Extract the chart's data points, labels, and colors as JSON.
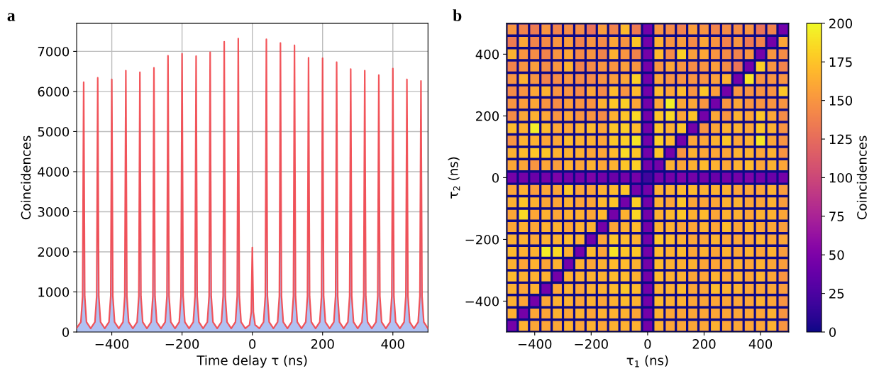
{
  "chart_data": [
    {
      "type": "line",
      "title": "a",
      "xlabel": "Time delay τ (ns)",
      "ylabel": "Coincidences",
      "x": [
        -500,
        -488,
        -483,
        -480,
        -477,
        -472,
        -460,
        -448,
        -443,
        -440,
        -437,
        -432,
        -420,
        -408,
        -403,
        -400,
        -397,
        -392,
        -380,
        -368,
        -363,
        -360,
        -357,
        -352,
        -340,
        -328,
        -323,
        -320,
        -317,
        -312,
        -300,
        -288,
        -283,
        -280,
        -277,
        -272,
        -260,
        -248,
        -243,
        -240,
        -237,
        -232,
        -220,
        -208,
        -203,
        -200,
        -197,
        -192,
        -180,
        -168,
        -163,
        -160,
        -157,
        -152,
        -140,
        -128,
        -123,
        -120,
        -117,
        -112,
        -100,
        -88,
        -83,
        -80,
        -77,
        -72,
        -60,
        -48,
        -43,
        -40,
        -37,
        -32,
        -20,
        -8,
        -3,
        0,
        3,
        8,
        20,
        32,
        37,
        40,
        43,
        48,
        60,
        72,
        77,
        80,
        83,
        88,
        100,
        112,
        117,
        120,
        123,
        128,
        140,
        152,
        157,
        160,
        163,
        168,
        180,
        192,
        197,
        200,
        203,
        208,
        220,
        232,
        237,
        240,
        243,
        248,
        260,
        272,
        277,
        280,
        283,
        288,
        300,
        312,
        317,
        320,
        323,
        328,
        340,
        352,
        357,
        360,
        363,
        368,
        380,
        392,
        397,
        400,
        403,
        408,
        420,
        432,
        437,
        440,
        443,
        448,
        460,
        472,
        477,
        480,
        483,
        488,
        500
      ],
      "series": [
        {
          "type": "area",
          "color": "#b0c1f2",
          "values": [
            100,
            250,
            900,
            6230,
            900,
            250,
            90,
            250,
            900,
            6340,
            900,
            250,
            90,
            250,
            900,
            6300,
            900,
            250,
            90,
            250,
            900,
            6520,
            900,
            250,
            90,
            250,
            900,
            6480,
            900,
            250,
            90,
            250,
            900,
            6590,
            900,
            250,
            90,
            250,
            900,
            6890,
            900,
            250,
            90,
            250,
            900,
            6940,
            900,
            250,
            90,
            250,
            900,
            6880,
            900,
            250,
            90,
            250,
            900,
            6980,
            900,
            250,
            90,
            250,
            900,
            7240,
            900,
            250,
            90,
            250,
            900,
            7320,
            900,
            250,
            90,
            180,
            500,
            2110,
            500,
            180,
            90,
            250,
            900,
            7300,
            900,
            250,
            90,
            250,
            900,
            7210,
            900,
            250,
            90,
            250,
            900,
            7150,
            900,
            250,
            90,
            250,
            900,
            6840,
            900,
            250,
            90,
            250,
            900,
            6830,
            900,
            250,
            90,
            250,
            900,
            6730,
            900,
            250,
            90,
            250,
            900,
            6560,
            900,
            250,
            90,
            250,
            900,
            6520,
            900,
            250,
            90,
            250,
            900,
            6410,
            900,
            250,
            90,
            250,
            900,
            6570,
            900,
            250,
            90,
            250,
            900,
            6300,
            900,
            250,
            90,
            250,
            900,
            6260,
            900,
            250,
            90
          ]
        },
        {
          "type": "line",
          "color": "#f24449",
          "values": [
            100,
            250,
            900,
            6230,
            900,
            250,
            90,
            250,
            900,
            6340,
            900,
            250,
            90,
            250,
            900,
            6300,
            900,
            250,
            90,
            250,
            900,
            6520,
            900,
            250,
            90,
            250,
            900,
            6480,
            900,
            250,
            90,
            250,
            900,
            6590,
            900,
            250,
            90,
            250,
            900,
            6890,
            900,
            250,
            90,
            250,
            900,
            6940,
            900,
            250,
            90,
            250,
            900,
            6880,
            900,
            250,
            90,
            250,
            900,
            6980,
            900,
            250,
            90,
            250,
            900,
            7240,
            900,
            250,
            90,
            250,
            900,
            7320,
            900,
            250,
            90,
            180,
            500,
            2110,
            500,
            180,
            90,
            250,
            900,
            7300,
            900,
            250,
            90,
            250,
            900,
            7210,
            900,
            250,
            90,
            250,
            900,
            7150,
            900,
            250,
            90,
            250,
            900,
            6840,
            900,
            250,
            90,
            250,
            900,
            6830,
            900,
            250,
            90,
            250,
            900,
            6730,
            900,
            250,
            90,
            250,
            900,
            6560,
            900,
            250,
            90,
            250,
            900,
            6520,
            900,
            250,
            90,
            250,
            900,
            6410,
            900,
            250,
            90,
            250,
            900,
            6570,
            900,
            250,
            90,
            250,
            900,
            6300,
            900,
            250,
            90,
            250,
            900,
            6260,
            900,
            250,
            90
          ]
        }
      ],
      "xlim": [
        -500,
        500
      ],
      "xticks": [
        -400,
        -200,
        0,
        200,
        400
      ],
      "ylim": [
        0,
        7700
      ],
      "yticks": [
        0,
        1000,
        2000,
        3000,
        4000,
        5000,
        6000,
        7000
      ],
      "grid": true,
      "line_style": "solid",
      "marker": "none"
    },
    {
      "type": "heatmap",
      "title": "b",
      "xlabel": "τ$_{1}$ (ns)",
      "ylabel": "τ$_{2}$ (ns)",
      "clabel": "Coincidences",
      "x": [
        -480,
        -440,
        -400,
        -360,
        -320,
        -280,
        -240,
        -200,
        -160,
        -120,
        -80,
        -40,
        0,
        40,
        80,
        120,
        160,
        200,
        240,
        280,
        320,
        360,
        400,
        440,
        480
      ],
      "y": [
        480,
        440,
        400,
        360,
        320,
        280,
        240,
        200,
        160,
        120,
        80,
        40,
        0,
        -40,
        -80,
        -120,
        -160,
        -200,
        -240,
        -280,
        -320,
        -360,
        -400,
        -440,
        -480
      ],
      "cells": [
        [
          150,
          140,
          135,
          150,
          140,
          145,
          145,
          130,
          155,
          140,
          170,
          135,
          45,
          150,
          145,
          140,
          155,
          150,
          140,
          145,
          145,
          150,
          130,
          140,
          45
        ],
        [
          135,
          160,
          140,
          145,
          150,
          155,
          140,
          150,
          145,
          160,
          150,
          175,
          45,
          165,
          150,
          155,
          145,
          160,
          150,
          140,
          150,
          135,
          140,
          45,
          160
        ],
        [
          165,
          150,
          145,
          140,
          150,
          160,
          145,
          150,
          140,
          165,
          150,
          140,
          45,
          170,
          145,
          180,
          155,
          160,
          150,
          145,
          140,
          150,
          45,
          150,
          145
        ],
        [
          140,
          150,
          155,
          145,
          150,
          165,
          140,
          145,
          150,
          150,
          155,
          150,
          45,
          150,
          160,
          150,
          145,
          150,
          155,
          145,
          130,
          45,
          180,
          150,
          140
        ],
        [
          150,
          165,
          150,
          140,
          145,
          150,
          145,
          145,
          150,
          155,
          160,
          180,
          45,
          160,
          150,
          150,
          150,
          150,
          155,
          165,
          45,
          190,
          150,
          150,
          150
        ],
        [
          145,
          150,
          160,
          165,
          150,
          150,
          145,
          160,
          145,
          170,
          150,
          170,
          45,
          170,
          160,
          170,
          150,
          175,
          155,
          45,
          150,
          150,
          150,
          150,
          175
        ],
        [
          150,
          155,
          160,
          150,
          145,
          155,
          150,
          150,
          165,
          175,
          180,
          160,
          45,
          160,
          195,
          160,
          160,
          150,
          45,
          150,
          160,
          150,
          150,
          150,
          150
        ],
        [
          145,
          160,
          165,
          160,
          150,
          160,
          150,
          150,
          145,
          165,
          175,
          185,
          45,
          175,
          185,
          160,
          175,
          45,
          160,
          150,
          165,
          160,
          175,
          160,
          145
        ],
        [
          170,
          165,
          195,
          170,
          160,
          160,
          165,
          170,
          160,
          175,
          180,
          170,
          45,
          175,
          165,
          175,
          45,
          150,
          160,
          165,
          165,
          160,
          175,
          165,
          150
        ],
        [
          150,
          165,
          165,
          160,
          160,
          170,
          165,
          165,
          160,
          175,
          180,
          190,
          45,
          180,
          170,
          45,
          160,
          160,
          165,
          175,
          160,
          165,
          190,
          160,
          150
        ],
        [
          165,
          170,
          175,
          175,
          165,
          165,
          165,
          160,
          160,
          170,
          185,
          175,
          45,
          175,
          45,
          150,
          165,
          160,
          160,
          160,
          165,
          165,
          160,
          165,
          150
        ],
        [
          160,
          160,
          150,
          160,
          155,
          165,
          160,
          165,
          160,
          165,
          175,
          180,
          45,
          45,
          165,
          160,
          165,
          170,
          165,
          160,
          165,
          170,
          160,
          165,
          160
        ],
        [
          45,
          45,
          40,
          45,
          50,
          45,
          45,
          50,
          45,
          40,
          45,
          45,
          20,
          45,
          45,
          50,
          45,
          45,
          40,
          45,
          45,
          50,
          45,
          40,
          45
        ],
        [
          160,
          165,
          155,
          160,
          160,
          175,
          160,
          160,
          165,
          170,
          175,
          45,
          45,
          165,
          165,
          170,
          170,
          165,
          165,
          165,
          160,
          160,
          160,
          165,
          155
        ],
        [
          165,
          175,
          165,
          160,
          160,
          165,
          160,
          160,
          170,
          175,
          45,
          180,
          45,
          165,
          160,
          175,
          160,
          160,
          160,
          165,
          165,
          160,
          160,
          165,
          155
        ],
        [
          160,
          185,
          160,
          165,
          160,
          165,
          165,
          160,
          170,
          45,
          165,
          185,
          45,
          165,
          170,
          175,
          165,
          170,
          160,
          165,
          165,
          160,
          165,
          165,
          160
        ],
        [
          160,
          165,
          160,
          165,
          165,
          160,
          165,
          165,
          45,
          160,
          165,
          170,
          45,
          165,
          165,
          160,
          160,
          165,
          160,
          170,
          160,
          165,
          160,
          160,
          155
        ],
        [
          165,
          165,
          160,
          165,
          165,
          170,
          165,
          45,
          160,
          175,
          170,
          165,
          45,
          175,
          170,
          165,
          160,
          160,
          165,
          160,
          160,
          160,
          165,
          160,
          160
        ],
        [
          170,
          165,
          165,
          195,
          185,
          165,
          45,
          170,
          160,
          190,
          175,
          175,
          45,
          170,
          165,
          170,
          160,
          165,
          160,
          165,
          160,
          165,
          160,
          165,
          155
        ],
        [
          165,
          160,
          165,
          160,
          165,
          45,
          165,
          160,
          165,
          170,
          170,
          165,
          45,
          170,
          165,
          165,
          165,
          160,
          160,
          160,
          165,
          160,
          165,
          160,
          155
        ],
        [
          170,
          165,
          165,
          165,
          45,
          165,
          165,
          165,
          165,
          170,
          170,
          165,
          45,
          170,
          165,
          165,
          160,
          160,
          165,
          160,
          165,
          160,
          165,
          160,
          150
        ],
        [
          165,
          160,
          165,
          45,
          160,
          165,
          160,
          165,
          165,
          170,
          175,
          170,
          45,
          165,
          165,
          170,
          160,
          160,
          170,
          165,
          165,
          160,
          160,
          160,
          155
        ],
        [
          165,
          160,
          45,
          160,
          165,
          165,
          160,
          165,
          160,
          165,
          170,
          165,
          45,
          170,
          165,
          165,
          160,
          160,
          160,
          160,
          160,
          160,
          165,
          160,
          150
        ],
        [
          165,
          45,
          160,
          160,
          165,
          160,
          165,
          160,
          165,
          165,
          165,
          160,
          45,
          165,
          160,
          160,
          160,
          160,
          160,
          160,
          160,
          160,
          160,
          165,
          150
        ],
        [
          45,
          165,
          160,
          160,
          160,
          165,
          160,
          165,
          160,
          165,
          165,
          165,
          45,
          165,
          160,
          160,
          160,
          160,
          165,
          160,
          160,
          160,
          160,
          165,
          150
        ]
      ],
      "xlim": [
        -500,
        500
      ],
      "xticks": [
        -400,
        -200,
        0,
        200,
        400
      ],
      "ylim": [
        -500,
        500
      ],
      "yticks": [
        -400,
        -200,
        0,
        200,
        400
      ],
      "clim": [
        0,
        200
      ],
      "cticks": [
        0,
        25,
        50,
        75,
        100,
        125,
        150,
        175,
        200
      ]
    }
  ]
}
